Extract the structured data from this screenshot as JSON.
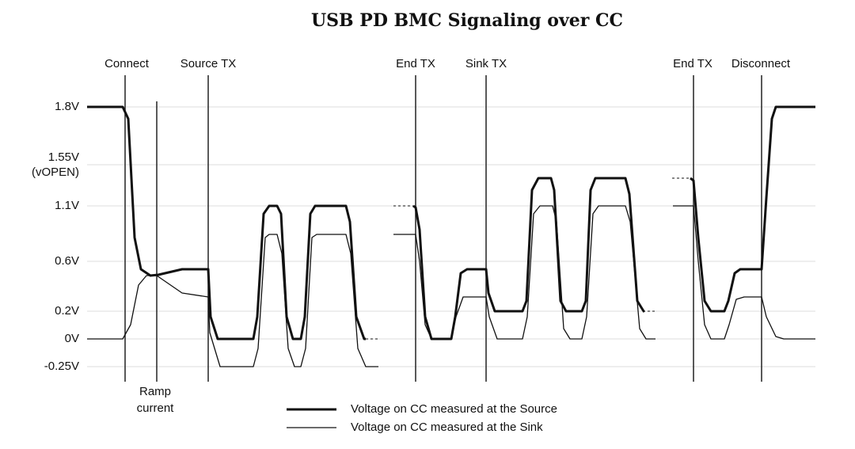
{
  "title": "USB PD BMC Signaling over CC",
  "y_levels": [
    "1.8V",
    "1.55V",
    "(vOPEN)",
    "1.1V",
    "0.6V",
    "0.2V",
    "0V",
    "-0.25V"
  ],
  "events": [
    "Connect",
    "Source TX",
    "End TX",
    "Sink TX",
    "End TX",
    "Disconnect"
  ],
  "annotation": [
    "Ramp",
    "current"
  ],
  "legend": [
    "Voltage on CC measured at the Source",
    "Voltage on CC measured at the Sink"
  ]
}
